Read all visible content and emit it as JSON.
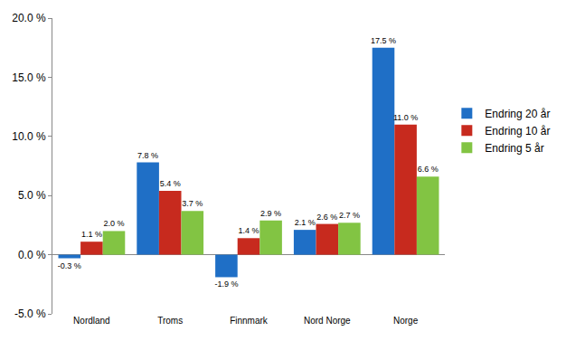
{
  "chart_data": {
    "type": "bar",
    "categories": [
      "Nordland",
      "Troms",
      "Finnmark",
      "Nord Norge",
      "Norge"
    ],
    "series": [
      {
        "name": "Endring 20 år",
        "color": "#1f6fc6",
        "values": [
          -0.3,
          7.8,
          -1.9,
          2.1,
          17.5
        ],
        "value_labels": [
          "-0.3 %",
          "7.8 %",
          "-1.9 %",
          "2.1 %",
          "17.5 %"
        ]
      },
      {
        "name": "Endring 10 år",
        "color": "#c72a1e",
        "values": [
          1.1,
          5.4,
          1.4,
          2.6,
          11.0
        ],
        "value_labels": [
          "1.1 %",
          "5.4 %",
          "1.4 %",
          "2.6 %",
          "11.0 %"
        ]
      },
      {
        "name": "Endring 5 år",
        "color": "#82c443",
        "values": [
          2.0,
          3.7,
          2.9,
          2.7,
          6.6
        ],
        "value_labels": [
          "2.0 %",
          "3.7 %",
          "2.9 %",
          "2.7 %",
          "6.6 %"
        ]
      }
    ],
    "ylim": [
      -5,
      20
    ],
    "yticks": [
      {
        "value": -5,
        "label": "-5.0 %"
      },
      {
        "value": 0,
        "label": "0.0 %"
      },
      {
        "value": 5,
        "label": "5.0 %"
      },
      {
        "value": 10,
        "label": "10.0 %"
      },
      {
        "value": 15,
        "label": "15.0 %"
      },
      {
        "value": 20,
        "label": "20.0 %"
      }
    ],
    "grid": false,
    "legend": "right",
    "data_labels": true
  }
}
